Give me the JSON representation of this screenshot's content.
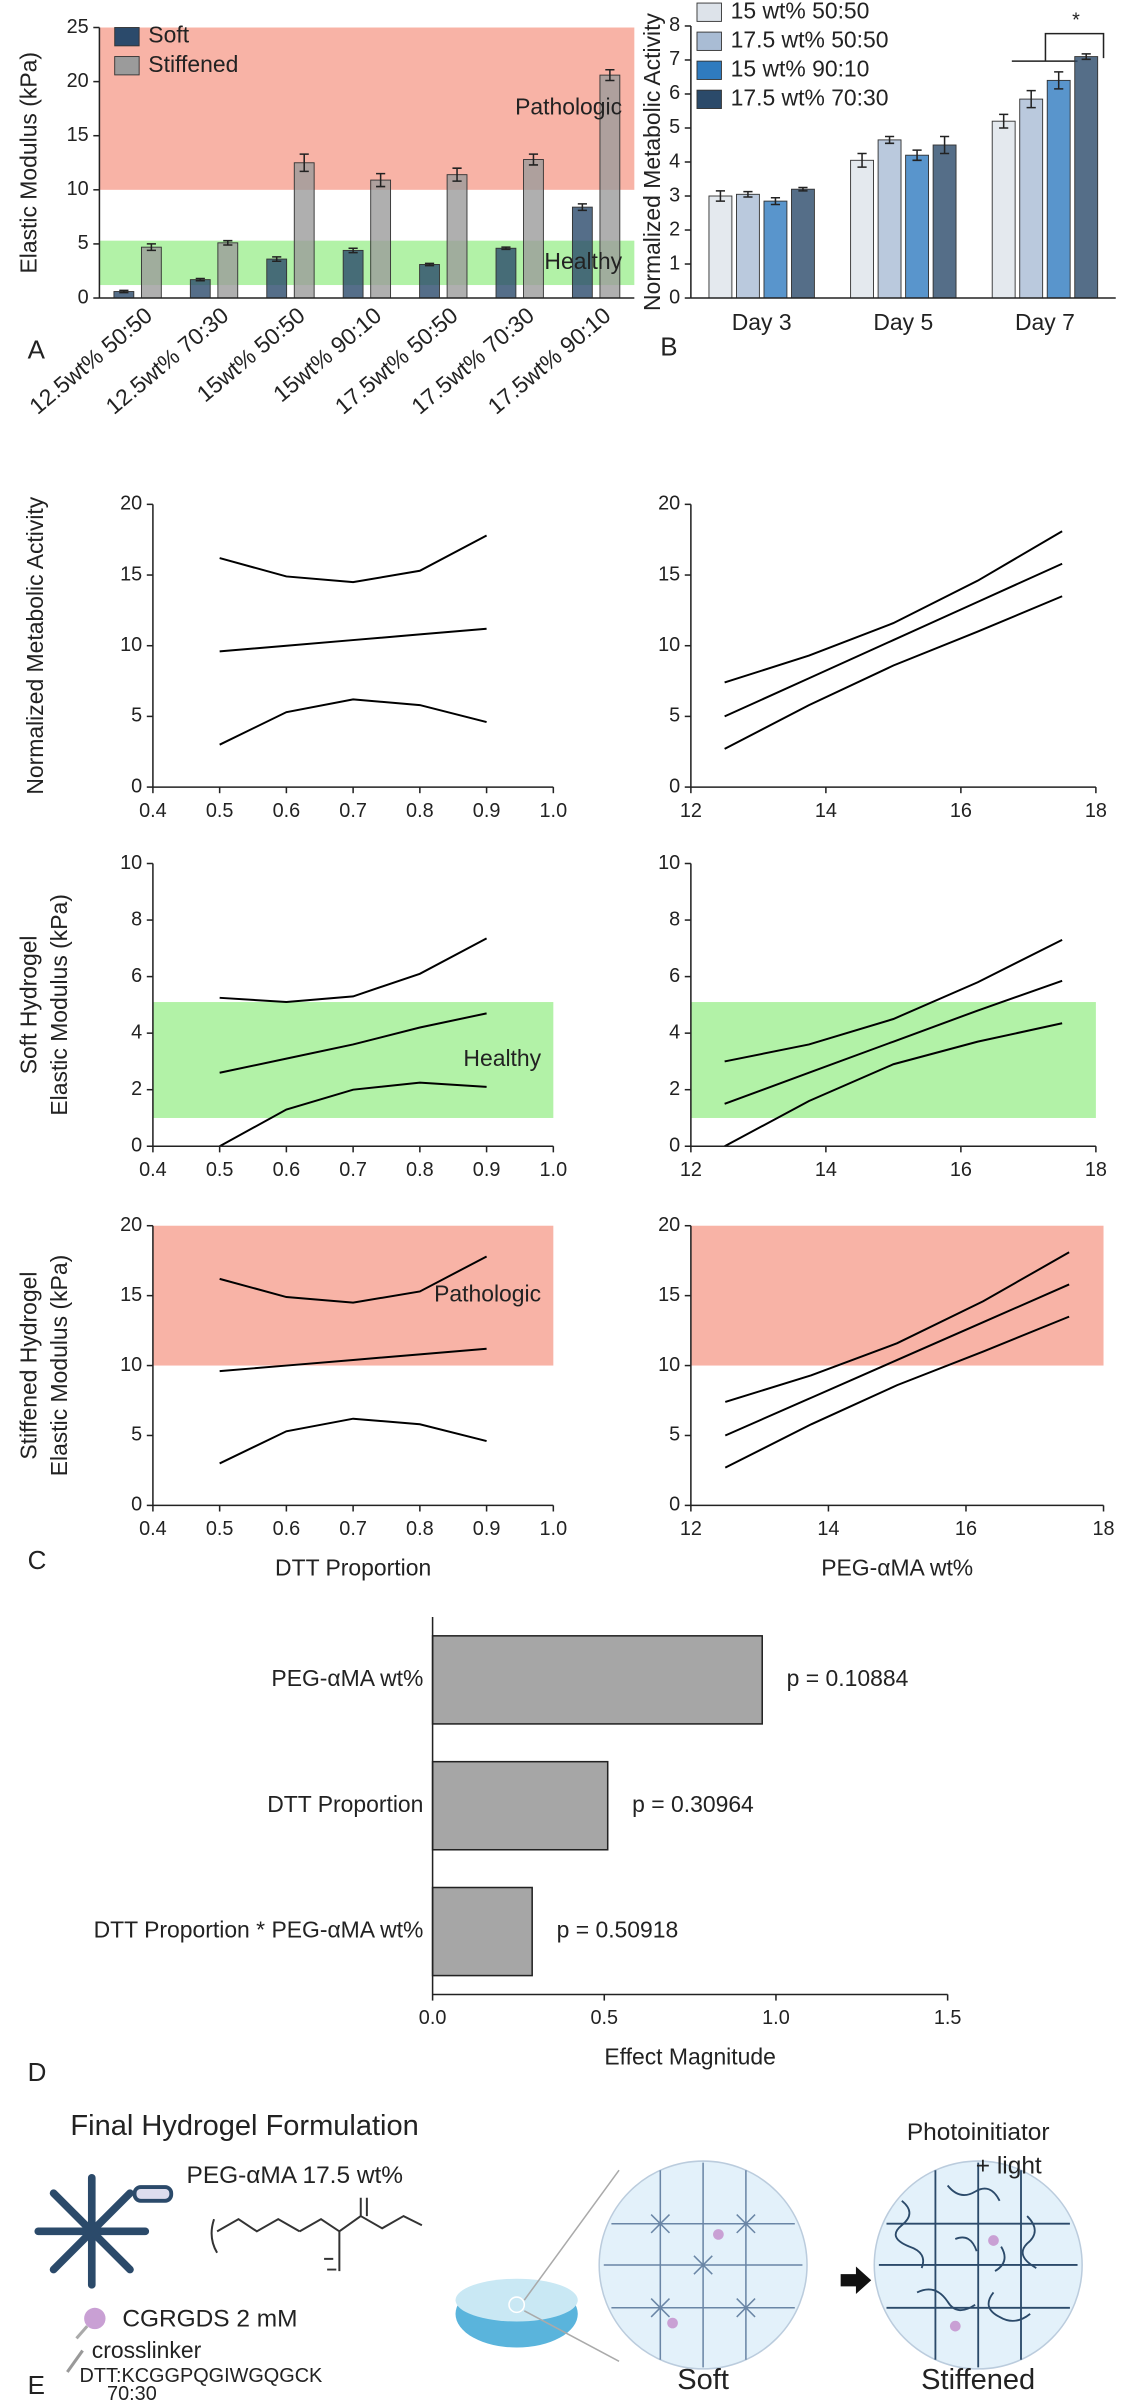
{
  "chart_data": [
    {
      "type": "bar",
      "label": "A",
      "ylabel": [
        "Elastic Modulus (kPa)"
      ],
      "categories": [
        "12.5wt% 50:50",
        "12.5wt% 70:30",
        "15wt% 50:50",
        "15wt% 90:10",
        "17.5wt% 50:50",
        "17.5wt% 70:30",
        "17.5wt% 90:10"
      ],
      "series": [
        {
          "name": "Soft",
          "color": "#2b4a6b",
          "values": [
            0.6,
            1.7,
            3.6,
            4.4,
            3.1,
            4.6,
            8.4
          ],
          "errors": [
            0.1,
            0.1,
            0.2,
            0.2,
            0.1,
            0.1,
            0.3
          ]
        },
        {
          "name": "Stiffened",
          "color": "#9b9b9b",
          "values": [
            4.7,
            5.1,
            12.5,
            10.9,
            11.4,
            12.8,
            20.6
          ],
          "errors": [
            0.3,
            0.2,
            0.8,
            0.6,
            0.6,
            0.5,
            0.5
          ]
        }
      ],
      "ylim": [
        0,
        25
      ],
      "yticks": [
        0,
        5,
        10,
        15,
        20,
        25
      ],
      "bands": [
        {
          "range": [
            10,
            25
          ],
          "color": "#f8b3a6",
          "label": "Pathologic"
        },
        {
          "range": [
            1.2,
            5.3
          ],
          "color": "#b2f2a7",
          "label": "Healthy"
        }
      ]
    },
    {
      "type": "bar",
      "label": "B",
      "ylabel": [
        "Normalized Metabolic Activity"
      ],
      "categories": [
        "Day 3",
        "Day 5",
        "Day 7"
      ],
      "series": [
        {
          "name": "15 wt% 50:50",
          "color": "#dde3ea",
          "values": [
            3.0,
            4.05,
            5.2
          ],
          "errors": [
            0.15,
            0.2,
            0.2
          ]
        },
        {
          "name": "17.5 wt% 50:50",
          "color": "#a9bcd4",
          "values": [
            3.05,
            4.65,
            5.85
          ],
          "errors": [
            0.08,
            0.1,
            0.25
          ]
        },
        {
          "name": "15 wt% 90:10",
          "color": "#2f7bbf",
          "values": [
            2.85,
            4.2,
            6.4
          ],
          "errors": [
            0.1,
            0.15,
            0.25
          ]
        },
        {
          "name": "17.5 wt% 70:30",
          "color": "#2b4a6a",
          "values": [
            3.2,
            4.5,
            7.1
          ],
          "errors": [
            0.05,
            0.25,
            0.08
          ]
        }
      ],
      "ylim": [
        0,
        8
      ],
      "yticks": [
        0,
        1,
        2,
        3,
        4,
        5,
        6,
        7,
        8
      ],
      "annotations": [
        "*"
      ]
    },
    {
      "type": "line",
      "ylabel": [
        "Normalized Metabolic Activity"
      ],
      "x": [
        0.5,
        0.6,
        0.7,
        0.8,
        0.9
      ],
      "series": [
        {
          "color": "#000000",
          "values": [
            16.2,
            14.9,
            14.5,
            15.3,
            17.8
          ]
        },
        {
          "color": "#000000",
          "values": [
            9.6,
            10.0,
            10.4,
            10.8,
            11.2
          ]
        },
        {
          "color": "#000000",
          "values": [
            3.0,
            5.3,
            6.2,
            5.8,
            4.6
          ]
        }
      ],
      "xlim": [
        0.4,
        1.0
      ],
      "xticks": [
        0.4,
        0.5,
        0.6,
        0.7,
        0.8,
        0.9,
        {
          "value": 1.0,
          "label": "1.0"
        }
      ],
      "ylim": [
        0,
        20
      ],
      "yticks": [
        0,
        5,
        10,
        15,
        20
      ]
    },
    {
      "type": "line",
      "x": [
        12.5,
        13.75,
        15,
        16.25,
        17.5
      ],
      "series": [
        {
          "color": "#000000",
          "values": [
            7.4,
            9.3,
            11.6,
            14.6,
            18.1
          ]
        },
        {
          "color": "#000000",
          "values": [
            5.0,
            7.7,
            10.4,
            13.1,
            15.8
          ]
        },
        {
          "color": "#000000",
          "values": [
            2.7,
            5.8,
            8.6,
            11.0,
            13.5
          ]
        }
      ],
      "xlim": [
        12,
        18
      ],
      "xticks": [
        12,
        14,
        16,
        18
      ],
      "ylim": [
        0,
        20
      ],
      "yticks": [
        0,
        5,
        10,
        15,
        20
      ]
    },
    {
      "type": "line",
      "ylabel": [
        "Soft Hydrogel",
        "Elastic Modulus (kPa)"
      ],
      "x": [
        0.5,
        0.6,
        0.7,
        0.8,
        0.9
      ],
      "series": [
        {
          "color": "#000000",
          "values": [
            5.25,
            5.1,
            5.3,
            6.1,
            7.35
          ]
        },
        {
          "color": "#000000",
          "values": [
            2.6,
            3.1,
            3.6,
            4.2,
            4.7
          ]
        },
        {
          "color": "#000000",
          "values": [
            0,
            1.3,
            2.0,
            2.25,
            2.1
          ]
        }
      ],
      "xlim": [
        0.4,
        1.0
      ],
      "xticks": [
        0.4,
        0.5,
        0.6,
        0.7,
        0.8,
        0.9,
        {
          "value": 1.0,
          "label": "1.0"
        }
      ],
      "ylim": [
        0,
        10
      ],
      "yticks": [
        0,
        2,
        4,
        6,
        8,
        10
      ],
      "bands": [
        {
          "range": [
            1,
            5.1
          ],
          "color": "#b2f2a7",
          "label": "Healthy"
        }
      ]
    },
    {
      "type": "line",
      "x": [
        12.5,
        13.75,
        15,
        16.25,
        17.5
      ],
      "series": [
        {
          "color": "#000000",
          "values": [
            3.0,
            3.6,
            4.5,
            5.8,
            7.3
          ]
        },
        {
          "color": "#000000",
          "values": [
            1.5,
            2.6,
            3.7,
            4.8,
            5.85
          ]
        },
        {
          "color": "#000000",
          "values": [
            0,
            1.6,
            2.9,
            3.7,
            4.35
          ]
        }
      ],
      "xlim": [
        12,
        18
      ],
      "xticks": [
        12,
        14,
        16,
        18
      ],
      "ylim": [
        0,
        10
      ],
      "yticks": [
        0,
        2,
        4,
        6,
        8,
        10
      ],
      "bands": [
        {
          "range": [
            1,
            5.1
          ],
          "color": "#b2f2a7"
        }
      ]
    },
    {
      "type": "line",
      "label": "C",
      "ylabel": [
        "Stiffened Hydrogel",
        "Elastic Modulus (kPa)"
      ],
      "xlabel": "DTT Proportion",
      "x": [
        0.5,
        0.6,
        0.7,
        0.8,
        0.9
      ],
      "series": [
        {
          "color": "#000000",
          "values": [
            16.2,
            14.9,
            14.5,
            15.3,
            17.8
          ]
        },
        {
          "color": "#000000",
          "values": [
            9.6,
            10.0,
            10.4,
            10.8,
            11.2
          ]
        },
        {
          "color": "#000000",
          "values": [
            3.0,
            5.3,
            6.2,
            5.8,
            4.6
          ]
        }
      ],
      "xlim": [
        0.4,
        1.0
      ],
      "xticks": [
        0.4,
        0.5,
        0.6,
        0.7,
        0.8,
        0.9,
        {
          "value": 1.0,
          "label": "1.0"
        }
      ],
      "ylim": [
        0,
        20
      ],
      "yticks": [
        0,
        5,
        10,
        15,
        20
      ],
      "bands": [
        {
          "range": [
            10,
            20
          ],
          "color": "#f8b3a6",
          "label": "Pathologic"
        }
      ]
    },
    {
      "type": "line",
      "xlabel": "PEG-αMA wt%",
      "x": [
        12.5,
        13.75,
        15,
        16.25,
        17.5
      ],
      "series": [
        {
          "color": "#000000",
          "values": [
            7.4,
            9.3,
            11.6,
            14.6,
            18.1
          ]
        },
        {
          "color": "#000000",
          "values": [
            5.0,
            7.7,
            10.4,
            13.1,
            15.8
          ]
        },
        {
          "color": "#000000",
          "values": [
            2.7,
            5.8,
            8.6,
            11.0,
            13.5
          ]
        }
      ],
      "xlim": [
        12,
        18
      ],
      "xticks": [
        12,
        14,
        16,
        18
      ],
      "ylim": [
        0,
        20
      ],
      "yticks": [
        0,
        5,
        10,
        15,
        20
      ],
      "bands": [
        {
          "range": [
            10,
            20
          ],
          "color": "#f8b3a6"
        }
      ]
    },
    {
      "type": "barh",
      "label": "D",
      "xlabel": "Effect Magnitude",
      "categories": [
        "PEG-αMA wt%",
        "DTT Proportion",
        "DTT Proportion * PEG-αMA wt%"
      ],
      "values": [
        0.96,
        0.51,
        0.29
      ],
      "annotations": [
        "p = 0.10884",
        "p = 0.30964",
        "p = 0.50918"
      ],
      "color": "#a6a6a6",
      "xlim": [
        0,
        1.5
      ],
      "xticks": [
        {
          "value": 0,
          "label": "0.0"
        },
        0.5,
        {
          "value": 1,
          "label": "1.0"
        },
        1.5
      ]
    }
  ],
  "diagram": {
    "label": "E",
    "title": "Final Hydrogel Formulation",
    "polymer": "PEG-αMA 17.5 wt%",
    "peptide": "CGRGDS 2 mM",
    "crosslinker": "crosslinker",
    "crosslinker_name": "DTT:KCGGPQGIWGQGCK",
    "crosslinker_ratio": "70:30",
    "stimulus": [
      "Photoinitiator",
      "+ light"
    ],
    "states": [
      "Soft",
      "Stiffened"
    ]
  }
}
